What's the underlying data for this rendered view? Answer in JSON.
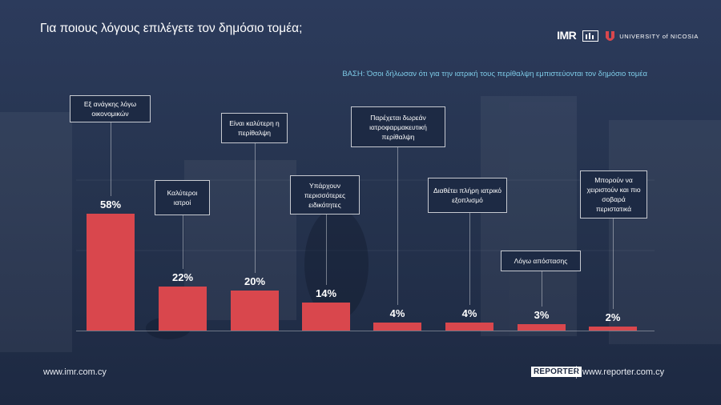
{
  "title": "Για ποιους λόγους επιλέγετε τον δημόσιο τομέα;",
  "basis": "ΒΑΣΗ: Όσοι δήλωσαν ότι για την ιατρική τους περίθαλψη εμπιστεύονται τον δημόσιο τομέα",
  "logos": {
    "imr": "IMR",
    "university": "UNIVERSITY of NICOSIA",
    "reporter": "REPORTER"
  },
  "footer": {
    "left_url": "www.imr.com.cy",
    "right_url": "www.reporter.com.cy"
  },
  "colors": {
    "bar": "#d9474d",
    "background": "#26344f",
    "accent_text": "#7ecbe7"
  },
  "chart_data": {
    "type": "bar",
    "categories": [
      "Εξ ανάγκης λόγω οικονομικών",
      "Καλύτεροι ιατροί",
      "Είναι καλύτερη η περίθαλψη",
      "Υπάρχουν περισσότερες ειδικότητες",
      "Παρέχεται δωρεάν ιατροφαρμακευτική περίθαλψη",
      "Διαθέτει πλήρη ιατρικό εξοπλισμό",
      "Λόγω απόστασης",
      "Μπορούν να χειριστούν και πιο σοβαρά περιστατικά"
    ],
    "values": [
      58,
      22,
      20,
      14,
      4,
      4,
      3,
      2
    ],
    "value_labels": [
      "58%",
      "22%",
      "20%",
      "14%",
      "4%",
      "4%",
      "3%",
      "2%"
    ],
    "ylim": [
      0,
      100
    ],
    "grid": true,
    "legend": "none"
  }
}
